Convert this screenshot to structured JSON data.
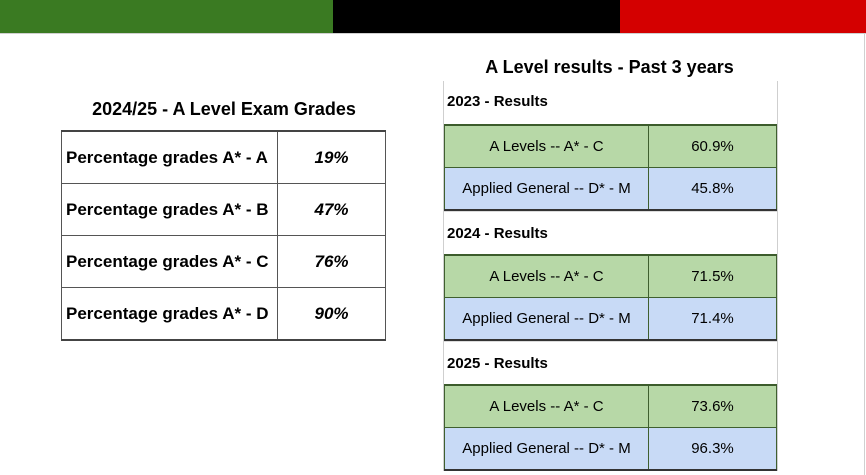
{
  "colors": {
    "band_green": "#3a7a22",
    "band_black": "#000000",
    "band_red": "#d40000",
    "row_green": "#b7d8a7",
    "row_blue": "#c8daf6"
  },
  "exam_grades": {
    "title": "2024/25 - A Level Exam Grades",
    "rows": [
      {
        "label": "Percentage grades A* - A",
        "value": "19%"
      },
      {
        "label": "Percentage grades A* - B",
        "value": "47%"
      },
      {
        "label": "Percentage grades A* - C",
        "value": "76%"
      },
      {
        "label": "Percentage grades A* - D",
        "value": "90%"
      }
    ]
  },
  "past_results": {
    "title": "A Level results - Past 3 years",
    "years": [
      {
        "heading": "2023 - Results",
        "a_levels_label": "A Levels -- A* - C",
        "a_levels_value": "60.9%",
        "applied_label": "Applied General -- D* - M",
        "applied_value": "45.8%"
      },
      {
        "heading": "2024 - Results",
        "a_levels_label": "A Levels -- A* - C",
        "a_levels_value": "71.5%",
        "applied_label": "Applied General -- D* - M",
        "applied_value": "71.4%"
      },
      {
        "heading": "2025 - Results",
        "a_levels_label": "A Levels -- A* - C",
        "a_levels_value": "73.6%",
        "applied_label": "Applied General -- D* - M",
        "applied_value": "96.3%"
      }
    ]
  }
}
